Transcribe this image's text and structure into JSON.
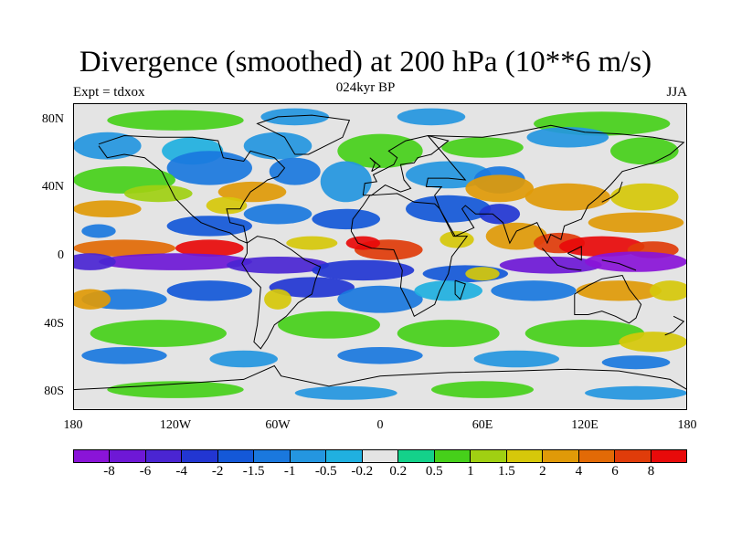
{
  "title": "Divergence (smoothed) at 200 hPa (10**6 m/s)",
  "subtitle": "024kyr BP",
  "left_label": "Expt = tdxox",
  "right_label": "JJA",
  "chart_data": {
    "type": "map-contour",
    "variable": "Divergence (smoothed)",
    "level": "200 hPa",
    "units": "10**6 m/s",
    "season": "JJA",
    "experiment": "tdxox",
    "period": "024kyr BP",
    "lon_range": [
      -180,
      180
    ],
    "lat_range": [
      -90,
      90
    ],
    "x_tick_labels": [
      "180",
      "120W",
      "60W",
      "0",
      "60E",
      "120E",
      "180"
    ],
    "y_tick_labels": [
      "80N",
      "40N",
      "0",
      "40S",
      "80S"
    ],
    "colorbar_labels": [
      "-8",
      "-6",
      "-4",
      "-2",
      "-1.5",
      "-1",
      "-0.5",
      "-0.2",
      "0.2",
      "0.5",
      "1",
      "1.5",
      "2",
      "4",
      "6",
      "8"
    ],
    "colorbar_colors": [
      "#8a14d8",
      "#6e18d6",
      "#4a25d2",
      "#2236d2",
      "#1458d8",
      "#1a78de",
      "#2496e0",
      "#20b0e0",
      "#e4e4e4",
      "#14d18a",
      "#46d01a",
      "#a0d012",
      "#d6c80a",
      "#e09a08",
      "#e26a06",
      "#e03c0a",
      "#e80a0a"
    ]
  }
}
